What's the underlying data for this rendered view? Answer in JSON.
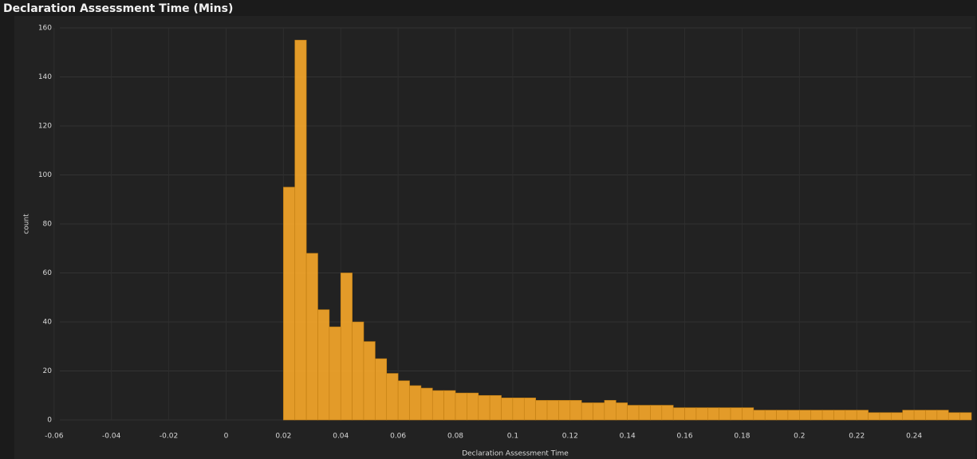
{
  "chart_data": {
    "type": "histogram",
    "title": "Declaration Assessment Time (Mins)",
    "x_label": "Declaration Assessment Time",
    "y_label": "count",
    "color": "#f4a62a",
    "bins": [
      0.02,
      0.024,
      0.028,
      0.032,
      0.036,
      0.04,
      0.044,
      0.048,
      0.052,
      0.056,
      0.06,
      0.064,
      0.068,
      0.072,
      0.076,
      0.08,
      0.084,
      0.088,
      0.092,
      0.096,
      0.1,
      0.104,
      0.108,
      0.112,
      0.116,
      0.12,
      0.124,
      0.128,
      0.132,
      0.136,
      0.14,
      0.144,
      0.148,
      0.152,
      0.156,
      0.16,
      0.164,
      0.168,
      0.172,
      0.176,
      0.18,
      0.184,
      0.188,
      0.192,
      0.196,
      0.2,
      0.204,
      0.208,
      0.212,
      0.216,
      0.22,
      0.224,
      0.228,
      0.232,
      0.236,
      0.24,
      0.244,
      0.248,
      0.252,
      0.256,
      0.26
    ],
    "values": [
      95,
      155,
      68,
      45,
      38,
      60,
      40,
      32,
      25,
      19,
      16,
      14,
      13,
      12,
      12,
      11,
      11,
      10,
      10,
      9,
      9,
      9,
      8,
      8,
      8,
      8,
      7,
      7,
      8,
      7,
      6,
      6,
      6,
      6,
      5,
      5,
      5,
      5,
      5,
      5,
      5,
      4,
      4,
      4,
      4,
      4,
      4,
      4,
      4,
      4,
      4,
      3,
      3,
      3,
      4,
      4,
      4,
      4,
      3,
      3
    ],
    "xlim": [
      -0.058,
      0.26
    ],
    "xticks": [
      -0.06,
      -0.04,
      -0.02,
      0,
      0.02,
      0.04,
      0.06,
      0.08,
      0.1,
      0.12,
      0.14,
      0.16,
      0.18,
      0.2,
      0.22,
      0.24
    ],
    "ylim": [
      0,
      160
    ],
    "yticks": [
      0,
      20,
      40,
      60,
      80,
      100,
      120,
      140,
      160
    ],
    "grid": true
  }
}
